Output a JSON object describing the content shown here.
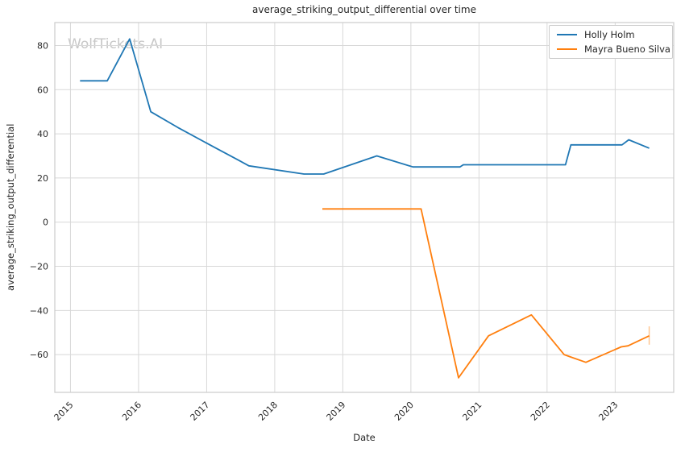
{
  "chart_data": {
    "type": "line",
    "title": "average_striking_output_differential over time",
    "xlabel": "Date",
    "ylabel": "average_striking_output_differential",
    "watermark": "WolfTickets.AI",
    "grid": true,
    "legend_position": "upper right",
    "x_ticks": [
      2015,
      2016,
      2017,
      2018,
      2019,
      2020,
      2021,
      2022,
      2023
    ],
    "y_ticks": [
      80,
      60,
      40,
      20,
      0,
      -20,
      -40,
      -60
    ],
    "xlim": [
      2014.77,
      2023.86
    ],
    "ylim": [
      -77.1,
      90.4
    ],
    "series": [
      {
        "name": "Holly Holm",
        "color": "#1f77b4",
        "points": [
          [
            2015.14,
            64
          ],
          [
            2015.54,
            64
          ],
          [
            2015.87,
            83
          ],
          [
            2016.18,
            50
          ],
          [
            2016.57,
            43
          ],
          [
            2017.12,
            33.8
          ],
          [
            2017.46,
            28.2
          ],
          [
            2017.62,
            25.5
          ],
          [
            2018.43,
            21.8
          ],
          [
            2018.72,
            21.8
          ],
          [
            2019.5,
            30
          ],
          [
            2020.03,
            25
          ],
          [
            2020.72,
            25
          ],
          [
            2020.77,
            26
          ],
          [
            2022.27,
            26
          ],
          [
            2022.35,
            35
          ],
          [
            2023.1,
            35
          ],
          [
            2023.2,
            37.3
          ],
          [
            2023.5,
            33.5
          ]
        ]
      },
      {
        "name": "Mayra Bueno Silva",
        "color": "#ff7f0e",
        "points": [
          [
            2018.7,
            6
          ],
          [
            2020.15,
            6
          ],
          [
            2020.7,
            -70.5
          ],
          [
            2021.14,
            -51.5
          ],
          [
            2021.77,
            -42
          ],
          [
            2022.25,
            -60
          ],
          [
            2022.34,
            -61
          ],
          [
            2022.57,
            -63.5
          ],
          [
            2023.09,
            -56.5
          ],
          [
            2023.19,
            -56
          ],
          [
            2023.5,
            -51.5
          ]
        ],
        "last_point_error": {
          "x": 2023.5,
          "low": -55.5,
          "high": -47.2
        }
      }
    ],
    "colors": {
      "grid": "#d8d8d8",
      "spine": "#cccccc",
      "tick_label": "#2b2b2b",
      "title": "#262626",
      "watermark": "#c7c7c7",
      "background": "#ffffff"
    }
  }
}
